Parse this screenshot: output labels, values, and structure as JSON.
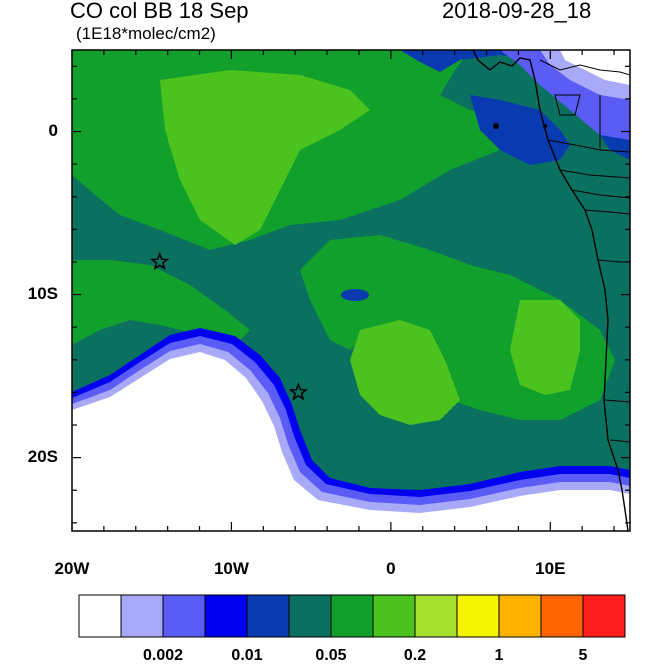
{
  "map": {
    "title_left": "CO col BB 18 Sep",
    "title_right": "2018-09-28_18",
    "units": "(1E18*molec/cm2)",
    "lat_labels": [
      {
        "label": "0",
        "lat": 0
      },
      {
        "label": "10S",
        "lat": -10
      },
      {
        "label": "20S",
        "lat": -20
      }
    ],
    "lon_labels": [
      {
        "label": "20W",
        "lon": -20
      },
      {
        "label": "10W",
        "lon": -10
      },
      {
        "label": "0",
        "lon": 0
      },
      {
        "label": "10E",
        "lon": 10
      }
    ],
    "extent": {
      "lon_min": -20,
      "lon_max": 15,
      "lat_min": -24.5,
      "lat_max": 5
    },
    "markers": [
      {
        "name": "star-marker-1",
        "lon": -14.5,
        "lat": -8
      },
      {
        "name": "star-marker-2",
        "lon": -5.8,
        "lat": -16
      }
    ]
  },
  "colorbar": {
    "colors": [
      "#ffffff",
      "#a8aaf8",
      "#5a5cf5",
      "#0000f0",
      "#0a3ab0",
      "#0a7060",
      "#12a02c",
      "#4cc21e",
      "#a8e030",
      "#f5f500",
      "#ffb300",
      "#ff6400",
      "#ff1e1e"
    ],
    "labels": [
      {
        "text": "0.002",
        "boundary": 2
      },
      {
        "text": "0.01",
        "boundary": 4
      },
      {
        "text": "0.05",
        "boundary": 6
      },
      {
        "text": "0.2",
        "boundary": 8
      },
      {
        "text": "1",
        "boundary": 10
      },
      {
        "text": "5",
        "boundary": 12
      }
    ]
  }
}
